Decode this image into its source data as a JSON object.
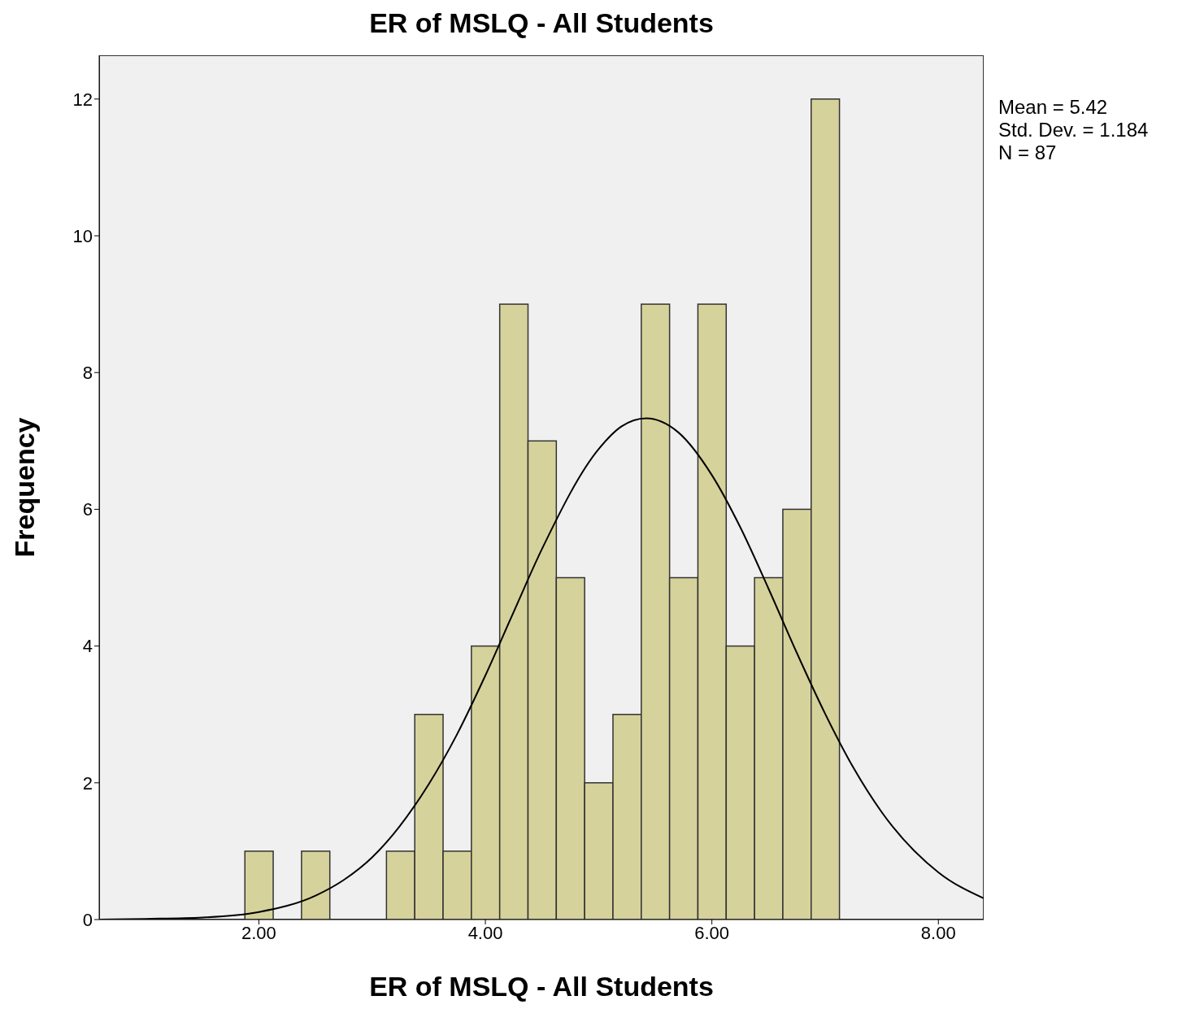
{
  "chart_data": {
    "type": "histogram",
    "title": "ER of MSLQ - All Students",
    "xlabel": "ER of MSLQ - All Students",
    "ylabel": "Frequency",
    "bins": [
      1.875,
      2.125,
      2.375,
      2.625,
      2.875,
      3.125,
      3.375,
      3.625,
      3.875,
      4.125,
      4.375,
      4.625,
      4.875,
      5.125,
      5.375,
      5.625,
      5.875,
      6.125,
      6.375,
      6.625,
      6.875,
      7.125
    ],
    "values": [
      1,
      0,
      1,
      0,
      0,
      1,
      3,
      1,
      4,
      9,
      7,
      5,
      2,
      3,
      9,
      5,
      9,
      4,
      5,
      6,
      12
    ],
    "color": "#d6d29b",
    "series": [
      {
        "type": "line",
        "color": "#000000",
        "x": [
          0.6,
          1.0,
          1.5,
          2.0,
          2.5,
          2.75,
          3.0,
          3.5,
          3.75,
          4.0,
          4.25,
          4.5,
          5.0,
          5.2,
          5.42,
          5.7,
          6.0,
          6.25,
          6.5,
          6.75,
          7.0,
          7.25,
          7.5,
          8.0,
          8.4
        ],
        "values": [
          0.0,
          0.01,
          0.03,
          0.11,
          0.35,
          0.58,
          0.91,
          1.98,
          2.71,
          3.57,
          4.5,
          5.42,
          6.88,
          7.21,
          7.33,
          7.13,
          6.5,
          5.74,
          4.84,
          3.9,
          3.01,
          2.22,
          1.57,
          0.69,
          0.31
        ]
      }
    ],
    "xlim": [
      0.59,
      8.4
    ],
    "ylim": [
      0,
      12.64
    ],
    "xticks": [
      {
        "value": 2,
        "label": "2.00"
      },
      {
        "value": 4,
        "label": "4.00"
      },
      {
        "value": 6,
        "label": "6.00"
      },
      {
        "value": 8,
        "label": "8.00"
      }
    ],
    "yticks": [
      0,
      2,
      4,
      6,
      8,
      10,
      12
    ],
    "annotations": [
      "Mean = 5.42",
      "Std. Dev. = 1.184",
      "N = 87"
    ],
    "tick_labels": "xy"
  }
}
